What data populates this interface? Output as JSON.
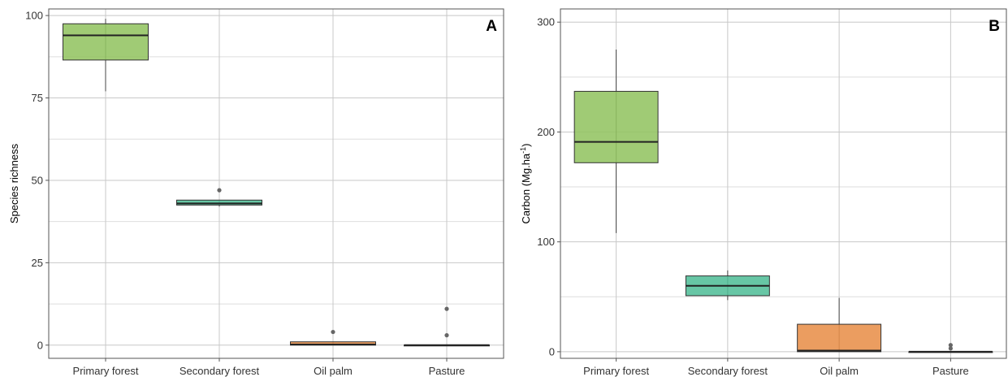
{
  "chart_data": [
    {
      "type": "box",
      "panel_label": "A",
      "ylabel": "Species richness",
      "xlabel": "",
      "ylim": [
        -4,
        102
      ],
      "yticks": [
        0,
        25,
        50,
        75,
        100
      ],
      "categories": [
        "Primary forest",
        "Secondary forest",
        "Oil palm",
        "Pasture"
      ],
      "colors": [
        "#93c462",
        "#52be98",
        "#e8904a",
        "#6a6a6a"
      ],
      "boxes": [
        {
          "category": "Primary forest",
          "whisker_low": 77,
          "q1": 86.5,
          "median": 94,
          "q3": 97.5,
          "whisker_high": 99,
          "outliers": []
        },
        {
          "category": "Secondary forest",
          "whisker_low": 42,
          "q1": 42.5,
          "median": 43,
          "q3": 44,
          "whisker_high": 44,
          "outliers": [
            47
          ]
        },
        {
          "category": "Oil palm",
          "whisker_low": 0,
          "q1": 0,
          "median": 0.2,
          "q3": 1,
          "whisker_high": 1,
          "outliers": [
            4
          ]
        },
        {
          "category": "Pasture",
          "whisker_low": 0,
          "q1": 0,
          "median": 0,
          "q3": 0,
          "whisker_high": 0,
          "outliers": [
            3,
            11
          ]
        }
      ],
      "grid": true
    },
    {
      "type": "box",
      "panel_label": "B",
      "ylabel": "Carbon (Mg.ha",
      "ylabel_superscript": "-1",
      "ylabel_suffix": ")",
      "xlabel": "",
      "ylim": [
        -6,
        312
      ],
      "yticks": [
        0,
        100,
        200,
        300
      ],
      "categories": [
        "Primary forest",
        "Secondary forest",
        "Oil palm",
        "Pasture"
      ],
      "colors": [
        "#93c462",
        "#52be98",
        "#e8904a",
        "#6a6a6a"
      ],
      "boxes": [
        {
          "category": "Primary forest",
          "whisker_low": 108,
          "q1": 172,
          "median": 191,
          "q3": 237,
          "whisker_high": 275,
          "outliers": []
        },
        {
          "category": "Secondary forest",
          "whisker_low": 47,
          "q1": 51,
          "median": 60,
          "q3": 69,
          "whisker_high": 74,
          "outliers": []
        },
        {
          "category": "Oil palm",
          "whisker_low": 0,
          "q1": 0,
          "median": 1,
          "q3": 25,
          "whisker_high": 49,
          "outliers": []
        },
        {
          "category": "Pasture",
          "whisker_low": 0,
          "q1": 0,
          "median": 0,
          "q3": 0,
          "whisker_high": 0,
          "outliers": [
            3,
            6
          ]
        }
      ],
      "grid": true
    }
  ]
}
